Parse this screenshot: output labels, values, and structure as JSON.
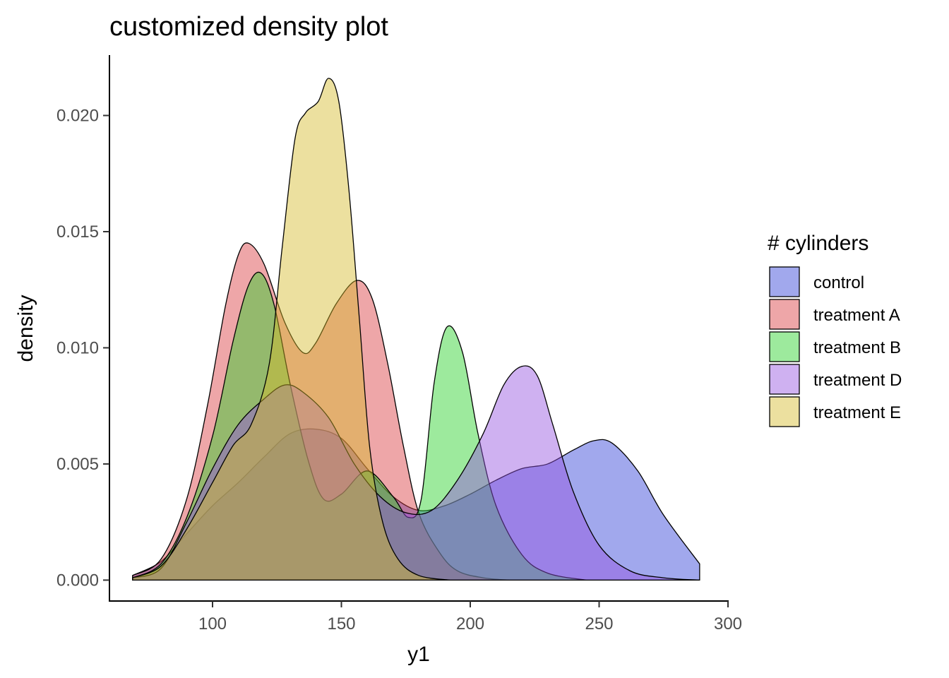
{
  "chart_data": {
    "type": "area",
    "title": "customized density plot",
    "xlabel": "y1",
    "ylabel": "density",
    "xlim": [
      60,
      300
    ],
    "ylim": [
      -0.0009,
      0.0226
    ],
    "x_ticks": [
      100,
      150,
      200,
      250,
      300
    ],
    "x_tick_labels": [
      "100",
      "150",
      "200",
      "250",
      "300"
    ],
    "y_ticks": [
      0,
      0.005,
      0.01,
      0.015,
      0.02
    ],
    "y_tick_labels": [
      "0.000",
      "0.005",
      "0.010",
      "0.015",
      "0.020"
    ],
    "grid": false,
    "legend": {
      "title": "# cylinders",
      "position": "right"
    },
    "fill_opacity": 0.45,
    "series": [
      {
        "name": "control",
        "color": "#2f3fd6",
        "points": [
          [
            69,
            0.0002
          ],
          [
            80,
            0.0008
          ],
          [
            90,
            0.002
          ],
          [
            100,
            0.0032
          ],
          [
            110,
            0.0042
          ],
          [
            120,
            0.0053
          ],
          [
            130,
            0.0063
          ],
          [
            140,
            0.0065
          ],
          [
            150,
            0.0061
          ],
          [
            160,
            0.0048
          ],
          [
            170,
            0.0036
          ],
          [
            180,
            0.003
          ],
          [
            190,
            0.0032
          ],
          [
            200,
            0.0037
          ],
          [
            210,
            0.0043
          ],
          [
            220,
            0.0048
          ],
          [
            230,
            0.005
          ],
          [
            240,
            0.0056
          ],
          [
            248,
            0.006
          ],
          [
            255,
            0.0059
          ],
          [
            265,
            0.0047
          ],
          [
            275,
            0.0028
          ],
          [
            289,
            0.0007
          ]
        ]
      },
      {
        "name": "treatment A",
        "color": "#d93a3f",
        "points": [
          [
            69,
            0.0002
          ],
          [
            80,
            0.0009
          ],
          [
            90,
            0.0035
          ],
          [
            98,
            0.0075
          ],
          [
            105,
            0.0118
          ],
          [
            110,
            0.014
          ],
          [
            114,
            0.0145
          ],
          [
            120,
            0.0136
          ],
          [
            128,
            0.0111
          ],
          [
            135,
            0.0098
          ],
          [
            140,
            0.0102
          ],
          [
            148,
            0.0119
          ],
          [
            156,
            0.0129
          ],
          [
            162,
            0.0121
          ],
          [
            168,
            0.0093
          ],
          [
            174,
            0.0058
          ],
          [
            180,
            0.0029
          ],
          [
            188,
            0.0012
          ],
          [
            195,
            0.0004
          ],
          [
            205,
            0.0001
          ],
          [
            215,
            0
          ]
        ]
      },
      {
        "name": "treatment B",
        "color": "#26d126",
        "points": [
          [
            69,
            0.0001
          ],
          [
            80,
            0.0007
          ],
          [
            90,
            0.0027
          ],
          [
            100,
            0.0062
          ],
          [
            108,
            0.0103
          ],
          [
            114,
            0.0127
          ],
          [
            119,
            0.0132
          ],
          [
            124,
            0.0118
          ],
          [
            130,
            0.0085
          ],
          [
            137,
            0.0052
          ],
          [
            143,
            0.0035
          ],
          [
            150,
            0.0037
          ],
          [
            160,
            0.0047
          ],
          [
            170,
            0.0036
          ],
          [
            176,
            0.0027
          ],
          [
            181,
            0.0035
          ],
          [
            186,
            0.0085
          ],
          [
            191,
            0.0109
          ],
          [
            197,
            0.0098
          ],
          [
            203,
            0.0063
          ],
          [
            210,
            0.0032
          ],
          [
            220,
            0.0011
          ],
          [
            230,
            0.0003
          ],
          [
            245,
            0
          ]
        ]
      },
      {
        "name": "treatment D",
        "color": "#9452e0",
        "points": [
          [
            69,
            0.0001
          ],
          [
            80,
            0.0005
          ],
          [
            90,
            0.0025
          ],
          [
            100,
            0.0048
          ],
          [
            110,
            0.0067
          ],
          [
            120,
            0.0078
          ],
          [
            128,
            0.0084
          ],
          [
            135,
            0.0081
          ],
          [
            145,
            0.007
          ],
          [
            155,
            0.005
          ],
          [
            165,
            0.0036
          ],
          [
            175,
            0.0029
          ],
          [
            185,
            0.003
          ],
          [
            195,
            0.0043
          ],
          [
            205,
            0.0063
          ],
          [
            213,
            0.0084
          ],
          [
            220,
            0.0092
          ],
          [
            226,
            0.0088
          ],
          [
            232,
            0.0067
          ],
          [
            240,
            0.0038
          ],
          [
            250,
            0.0015
          ],
          [
            262,
            0.0004
          ],
          [
            275,
            0.0001
          ],
          [
            289,
            0
          ]
        ]
      },
      {
        "name": "treatment E",
        "color": "#d4bb2b",
        "points": [
          [
            69,
            0.0001
          ],
          [
            80,
            0.0006
          ],
          [
            90,
            0.0022
          ],
          [
            100,
            0.0042
          ],
          [
            108,
            0.0058
          ],
          [
            115,
            0.0067
          ],
          [
            122,
            0.0093
          ],
          [
            127,
            0.0143
          ],
          [
            132,
            0.019
          ],
          [
            136,
            0.0201
          ],
          [
            141,
            0.0206
          ],
          [
            145,
            0.0216
          ],
          [
            149,
            0.0206
          ],
          [
            153,
            0.0167
          ],
          [
            157,
            0.0112
          ],
          [
            161,
            0.0057
          ],
          [
            166,
            0.0025
          ],
          [
            172,
            0.0009
          ],
          [
            180,
            0.0002
          ],
          [
            192,
            0
          ]
        ]
      }
    ]
  }
}
